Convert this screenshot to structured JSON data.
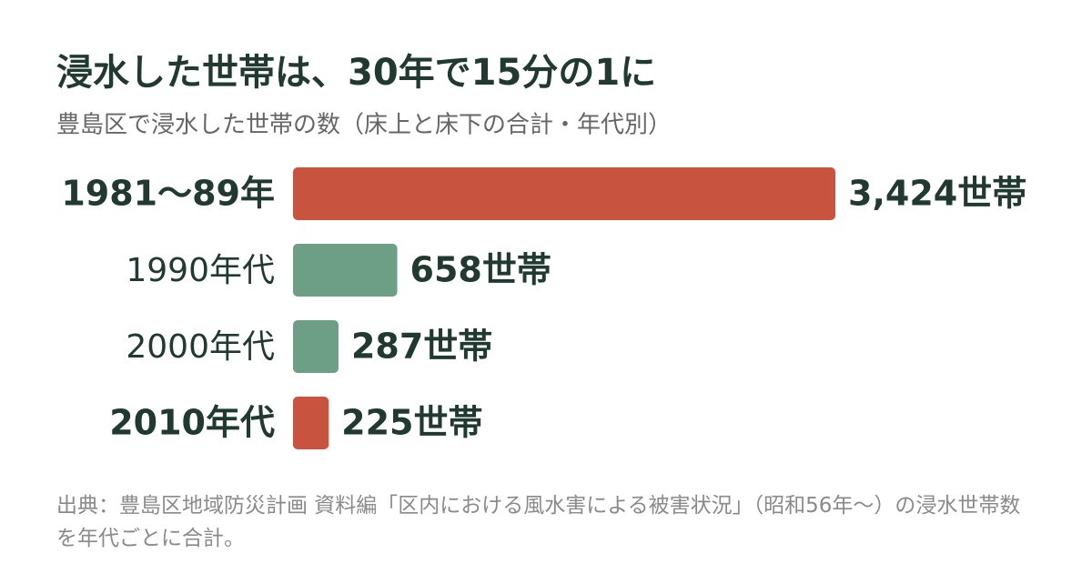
{
  "chart_data": {
    "type": "bar",
    "orientation": "horizontal",
    "title": "浸水した世帯は、30年で15分の1に",
    "subtitle": "豊島区で浸水した世帯の数（床上と床下の合計・年代別）",
    "categories": [
      "1981〜89年",
      "1990年代",
      "2000年代",
      "2010年代"
    ],
    "values": [
      3424,
      658,
      287,
      225
    ],
    "value_labels": [
      "3,424世帯",
      "658世帯",
      "287世帯",
      "225世帯"
    ],
    "colors": [
      "#c8543f",
      "#6c9f86",
      "#6c9f86",
      "#c8543f"
    ],
    "highlight": [
      true,
      false,
      false,
      true
    ],
    "source": "出典：豊島区地域防災計画 資料編「区内における風水害による被害状況」（昭和56年〜）の浸水世帯数を年代ごとに合計。"
  }
}
